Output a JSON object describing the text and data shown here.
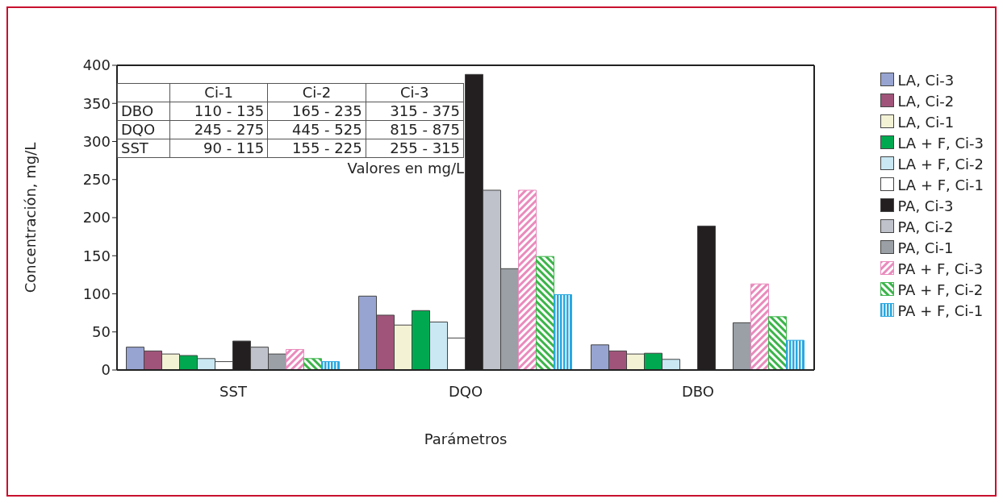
{
  "chart_data": {
    "type": "bar",
    "xlabel": "Parámetros",
    "ylabel": "Concentración, mg/L",
    "categories": [
      "SST",
      "DQO",
      "DBO"
    ],
    "series": [
      {
        "name": "LA, Ci-3",
        "color": "#97a4d2",
        "values": [
          30,
          97,
          33
        ]
      },
      {
        "name": "LA, Ci-2",
        "color": "#a1547a",
        "values": [
          25,
          72,
          25
        ]
      },
      {
        "name": "LA, Ci-1",
        "color": "#f3f2d5",
        "values": [
          21,
          59,
          21
        ]
      },
      {
        "name": "LA + F, Ci-3",
        "color": "#00a94f",
        "values": [
          19,
          78,
          22
        ]
      },
      {
        "name": "LA + F, Ci-2",
        "color": "#c9e8f4",
        "values": [
          15,
          63,
          14
        ]
      },
      {
        "name": "LA + F, Ci-1",
        "color": "#ffffff",
        "values": [
          11,
          42,
          null
        ]
      },
      {
        "name": "PA, Ci-3",
        "color": "#231f20",
        "values": [
          38,
          388,
          189
        ]
      },
      {
        "name": "PA, Ci-2",
        "color": "#bfc2ca",
        "values": [
          30,
          236,
          null
        ]
      },
      {
        "name": "PA, Ci-1",
        "color": "#9aa0a6",
        "values": [
          21,
          133,
          62
        ]
      },
      {
        "name": "PA + F, Ci-3",
        "color": "#e98bbd",
        "values": [
          27,
          236,
          113
        ]
      },
      {
        "name": "PA + F, Ci-2",
        "color": "#3cb44a",
        "values": [
          15,
          149,
          70
        ]
      },
      {
        "name": "PA + F, Ci-1",
        "color": "#2aa8e0",
        "values": [
          11,
          99,
          39
        ]
      }
    ],
    "ylim": [
      0,
      400
    ],
    "yticks": [
      0,
      50,
      100,
      150,
      200,
      250,
      300,
      350,
      400
    ],
    "legend": "right",
    "annotations": [
      "Ci-1",
      "Ci-2",
      "Ci-3",
      "DBO",
      "110 - 135",
      "165 - 235",
      "315 - 375",
      "DQO",
      "245 - 275",
      "445 - 525",
      "815 - 875",
      "SST",
      "90 - 115",
      "155 - 225",
      "255 - 315",
      "Valores en mg/L"
    ]
  }
}
